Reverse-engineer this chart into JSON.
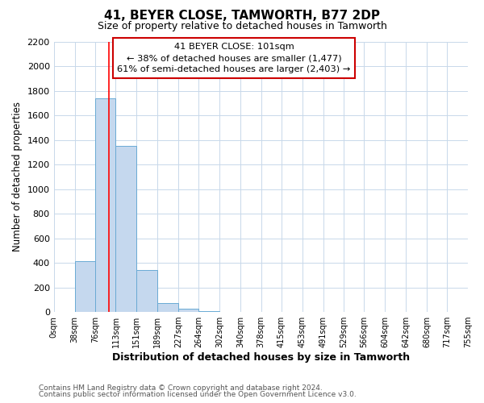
{
  "title": "41, BEYER CLOSE, TAMWORTH, B77 2DP",
  "subtitle": "Size of property relative to detached houses in Tamworth",
  "xlabel": "Distribution of detached houses by size in Tamworth",
  "ylabel": "Number of detached properties",
  "bar_edges": [
    0,
    38,
    76,
    113,
    151,
    189,
    227,
    264,
    302,
    340,
    378,
    415,
    453,
    491,
    529,
    566,
    604,
    642,
    680,
    717,
    755
  ],
  "bar_heights": [
    0,
    415,
    1735,
    1350,
    340,
    75,
    25,
    5,
    0,
    0,
    0,
    0,
    0,
    0,
    0,
    0,
    0,
    0,
    0,
    0
  ],
  "bar_color": "#c5d8ee",
  "bar_edgecolor": "#6aaad4",
  "redline_x": 101,
  "ylim": [
    0,
    2200
  ],
  "yticks": [
    0,
    200,
    400,
    600,
    800,
    1000,
    1200,
    1400,
    1600,
    1800,
    2000,
    2200
  ],
  "xtick_labels": [
    "0sqm",
    "38sqm",
    "76sqm",
    "113sqm",
    "151sqm",
    "189sqm",
    "227sqm",
    "264sqm",
    "302sqm",
    "340sqm",
    "378sqm",
    "415sqm",
    "453sqm",
    "491sqm",
    "529sqm",
    "566sqm",
    "604sqm",
    "642sqm",
    "680sqm",
    "717sqm",
    "755sqm"
  ],
  "annotation_box_title": "41 BEYER CLOSE: 101sqm",
  "annotation_line1": "← 38% of detached houses are smaller (1,477)",
  "annotation_line2": "61% of semi-detached houses are larger (2,403) →",
  "footer_line1": "Contains HM Land Registry data © Crown copyright and database right 2024.",
  "footer_line2": "Contains public sector information licensed under the Open Government Licence v3.0.",
  "background_color": "#ffffff",
  "grid_color": "#c8d8ea",
  "title_fontsize": 11,
  "subtitle_fontsize": 9,
  "figsize": [
    6.0,
    5.0
  ],
  "dpi": 100
}
